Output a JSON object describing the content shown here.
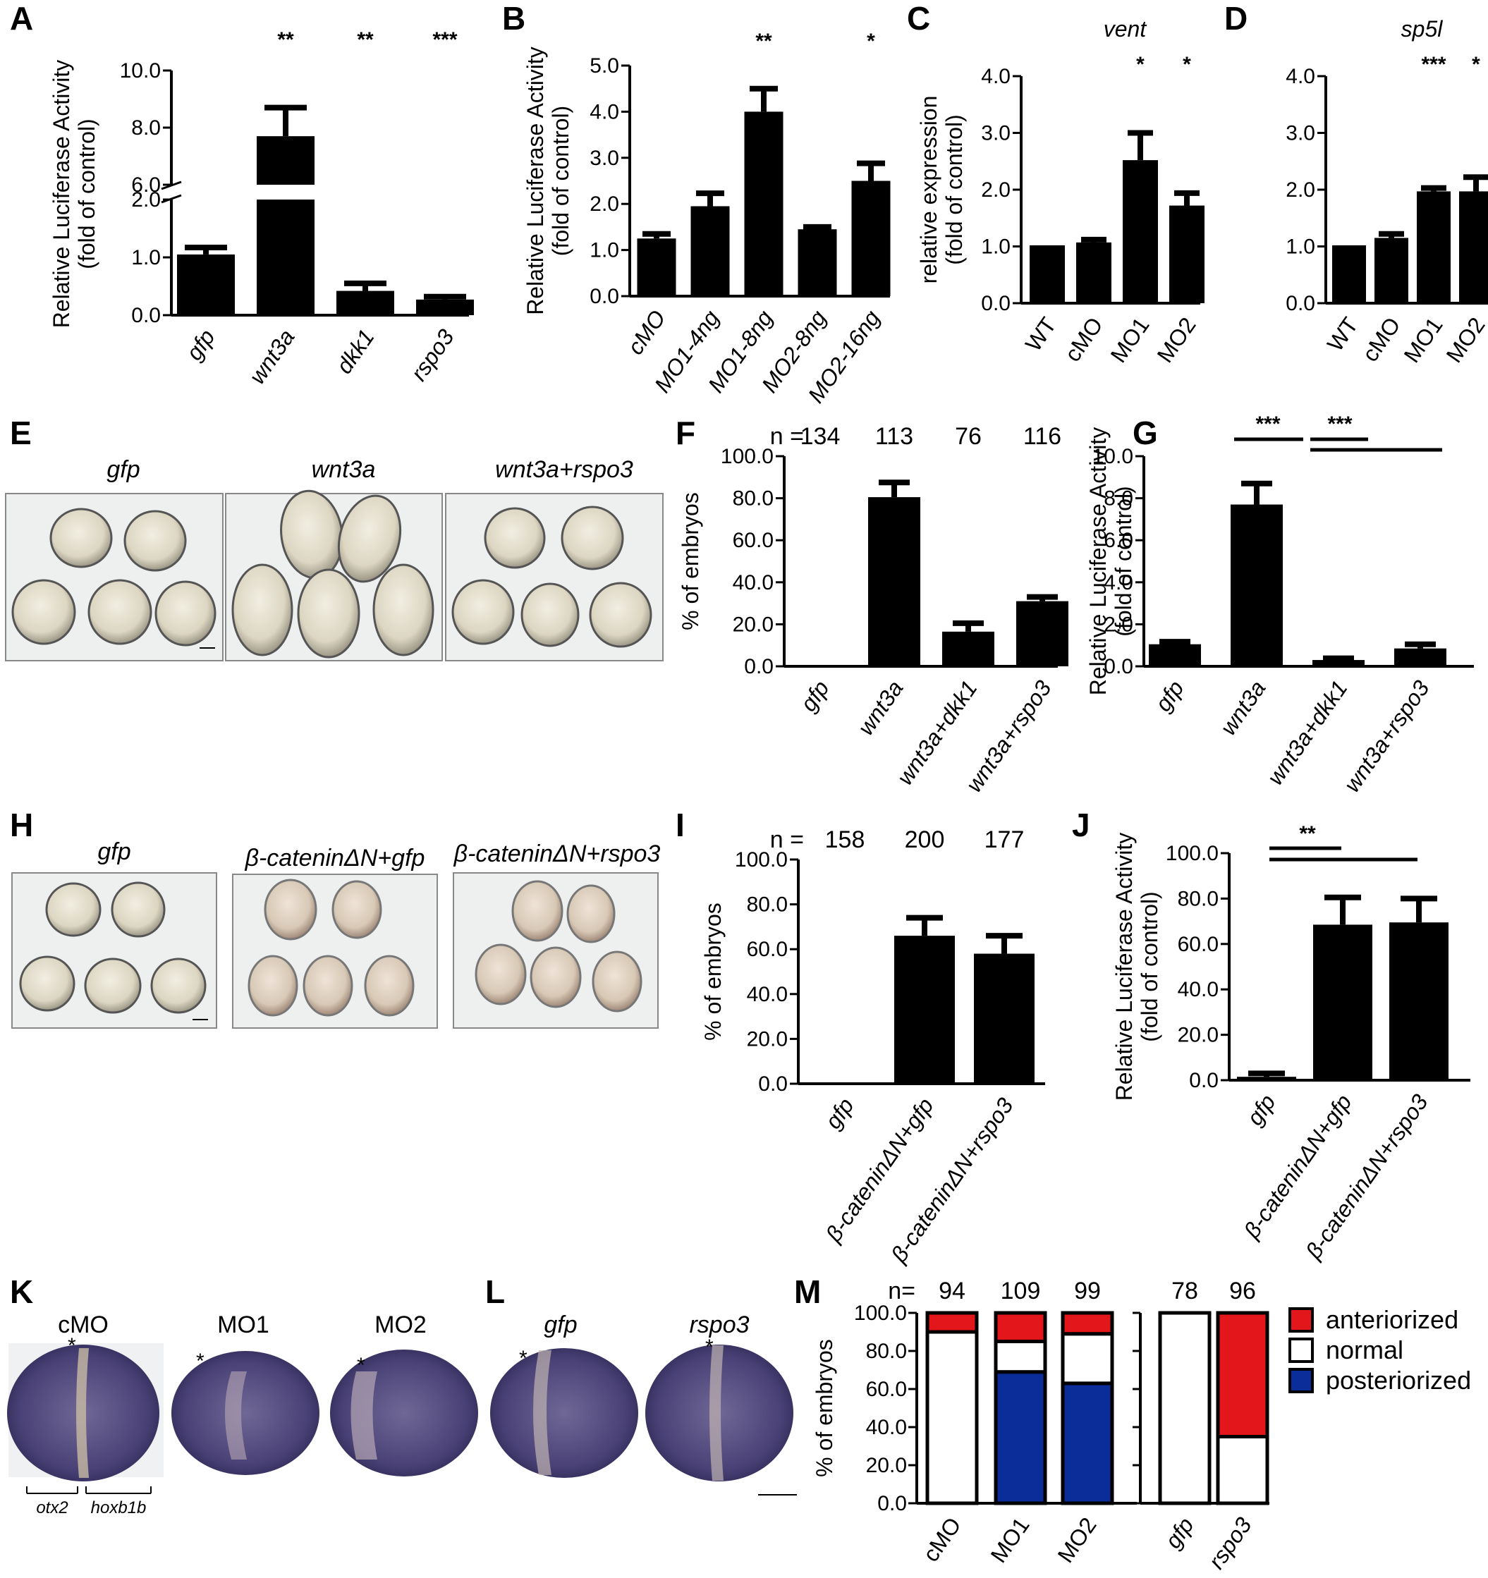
{
  "panels": {
    "A": "A",
    "B": "B",
    "C": "C",
    "D": "D",
    "E": "E",
    "F": "F",
    "G": "G",
    "H": "H",
    "I": "I",
    "J": "J",
    "K": "K",
    "L": "L",
    "M": "M"
  },
  "colors": {
    "bar": "#000000",
    "anterior": "#e3161b",
    "normal": "#ffffff",
    "posterior": "#0a2d9a"
  },
  "chart_data": [
    {
      "id": "A",
      "type": "bar",
      "broken_axis": true,
      "categories": [
        "gfp",
        "wnt3a",
        "dkk1",
        "rspo3"
      ],
      "values": [
        1.05,
        7.7,
        0.42,
        0.27
      ],
      "errors": [
        0.12,
        1.0,
        0.13,
        0.05
      ],
      "significance": [
        "",
        "**",
        "**",
        "***"
      ],
      "ylabel": "Relative Luciferase Activity",
      "ylabel2": "(fold of control)",
      "yticks_lower": [
        "0.0",
        "1.0",
        "2.0"
      ],
      "yticks_upper": [
        "6.0",
        "8.0",
        "10.0"
      ],
      "ylim_lower": [
        0,
        2
      ],
      "ylim_upper": [
        6,
        10
      ]
    },
    {
      "id": "B",
      "type": "bar",
      "categories": [
        "cMO",
        "MO1-4ng",
        "MO1-8ng",
        "MO2-8ng",
        "MO2-16ng"
      ],
      "values": [
        1.25,
        1.95,
        4.0,
        1.45,
        2.5
      ],
      "errors": [
        0.1,
        0.28,
        0.5,
        0.05,
        0.38
      ],
      "significance": [
        "",
        "",
        "**",
        "",
        "*"
      ],
      "ylabel": "Relative Luciferase Activity",
      "ylabel2": "(fold of control)",
      "yticks": [
        "0.0",
        "1.0",
        "2.0",
        "3.0",
        "4.0",
        "5.0"
      ],
      "ylim": [
        0,
        5
      ]
    },
    {
      "id": "C",
      "type": "bar",
      "title": "vent",
      "categories": [
        "WT",
        "cMO",
        "MO1",
        "MO2"
      ],
      "values": [
        1.02,
        1.07,
        2.52,
        1.72
      ],
      "errors": [
        0.0,
        0.05,
        0.48,
        0.22
      ],
      "significance": [
        "",
        "",
        "*",
        "*"
      ],
      "ylabel": "relative expression",
      "ylabel2": "(fold of control)",
      "yticks": [
        "0.0",
        "1.0",
        "2.0",
        "3.0",
        "4.0"
      ],
      "ylim": [
        0,
        4
      ]
    },
    {
      "id": "D",
      "type": "bar",
      "title": "sp5l",
      "categories": [
        "WT",
        "cMO",
        "MO1",
        "MO2"
      ],
      "values": [
        1.02,
        1.15,
        1.97,
        1.97
      ],
      "errors": [
        0.0,
        0.07,
        0.06,
        0.25
      ],
      "significance": [
        "",
        "",
        "***",
        "*"
      ],
      "yticks": [
        "0.0",
        "1.0",
        "2.0",
        "3.0",
        "4.0"
      ],
      "ylim": [
        0,
        4
      ]
    },
    {
      "id": "F",
      "type": "bar",
      "categories": [
        "gfp",
        "wnt3a",
        "wnt3a+dkk1",
        "wnt3a+rspo3"
      ],
      "values": [
        0,
        80.5,
        16.5,
        31
      ],
      "errors": [
        0,
        7,
        4,
        2
      ],
      "n_label": "n =",
      "n": [
        "134",
        "113",
        "76",
        "116"
      ],
      "ylabel": "% of embryos",
      "yticks": [
        "0.0",
        "20.0",
        "40.0",
        "60.0",
        "80.0",
        "100.0"
      ],
      "ylim": [
        0,
        100
      ]
    },
    {
      "id": "G",
      "type": "bar",
      "categories": [
        "gfp",
        "wnt3a",
        "wnt3a+dkk1",
        "wnt3a+rspo3"
      ],
      "values": [
        1.05,
        7.7,
        0.3,
        0.85
      ],
      "errors": [
        0.12,
        1.0,
        0.08,
        0.2
      ],
      "significance_brackets": [
        "***",
        "***"
      ],
      "ylabel": "Relative Luciferase Activity",
      "ylabel2": "(fold of control)",
      "yticks": [
        "0.0",
        "2.0",
        "4.0",
        "6.0",
        "8.0",
        "10.0"
      ],
      "ylim": [
        0,
        10
      ]
    },
    {
      "id": "I",
      "type": "bar",
      "categories": [
        "gfp",
        "β-cateninΔN+gfp",
        "β-cateninΔN+rspo3"
      ],
      "values": [
        0,
        66,
        58
      ],
      "errors": [
        0,
        8,
        8
      ],
      "n_label": "n =",
      "n": [
        "158",
        "200",
        "177"
      ],
      "ylabel": "% of embryos",
      "yticks": [
        "0.0",
        "20.0",
        "40.0",
        "60.0",
        "80.0",
        "100.0"
      ],
      "ylim": [
        0,
        100
      ]
    },
    {
      "id": "J",
      "type": "bar",
      "categories": [
        "gfp",
        "β-cateninΔN+gfp",
        "β-cateninΔN+rspo3"
      ],
      "values": [
        1.5,
        68.5,
        69.5
      ],
      "errors": [
        1.5,
        12,
        10.5
      ],
      "significance_brackets": [
        "**"
      ],
      "ylabel": "Relative Luciferase Activity",
      "ylabel2": "(fold of control)",
      "yticks": [
        "0.0",
        "20.0",
        "40.0",
        "60.0",
        "80.0",
        "100.0"
      ],
      "ylim": [
        0,
        100
      ]
    },
    {
      "id": "M",
      "type": "stacked-bar",
      "categories": [
        "cMO",
        "MO1",
        "MO2",
        "gfp",
        "rspo3"
      ],
      "n_label": "n=",
      "n": [
        "94",
        "109",
        "99",
        "78",
        "96"
      ],
      "series": [
        {
          "name": "posteriorized",
          "values": [
            0,
            69,
            63,
            0,
            0
          ]
        },
        {
          "name": "normal",
          "values": [
            90,
            16,
            26,
            100,
            35
          ]
        },
        {
          "name": "anteriorized",
          "values": [
            10,
            15,
            11,
            0,
            65
          ]
        }
      ],
      "ylabel": "% of embryos",
      "yticks": [
        "0.0",
        "20.0",
        "40.0",
        "60.0",
        "80.0",
        "100.0"
      ],
      "ylim": [
        0,
        100
      ],
      "legend_position": "right"
    }
  ],
  "images": {
    "E": [
      "gfp",
      "wnt3a",
      "wnt3a+rspo3"
    ],
    "H": [
      "gfp",
      "β-cateninΔN+gfp",
      "β-cateninΔN+rspo3"
    ],
    "K": [
      "cMO",
      "MO1",
      "MO2"
    ],
    "L": [
      "gfp",
      "rspo3"
    ],
    "K_markers": [
      "otx2",
      "hoxb1b"
    ]
  }
}
